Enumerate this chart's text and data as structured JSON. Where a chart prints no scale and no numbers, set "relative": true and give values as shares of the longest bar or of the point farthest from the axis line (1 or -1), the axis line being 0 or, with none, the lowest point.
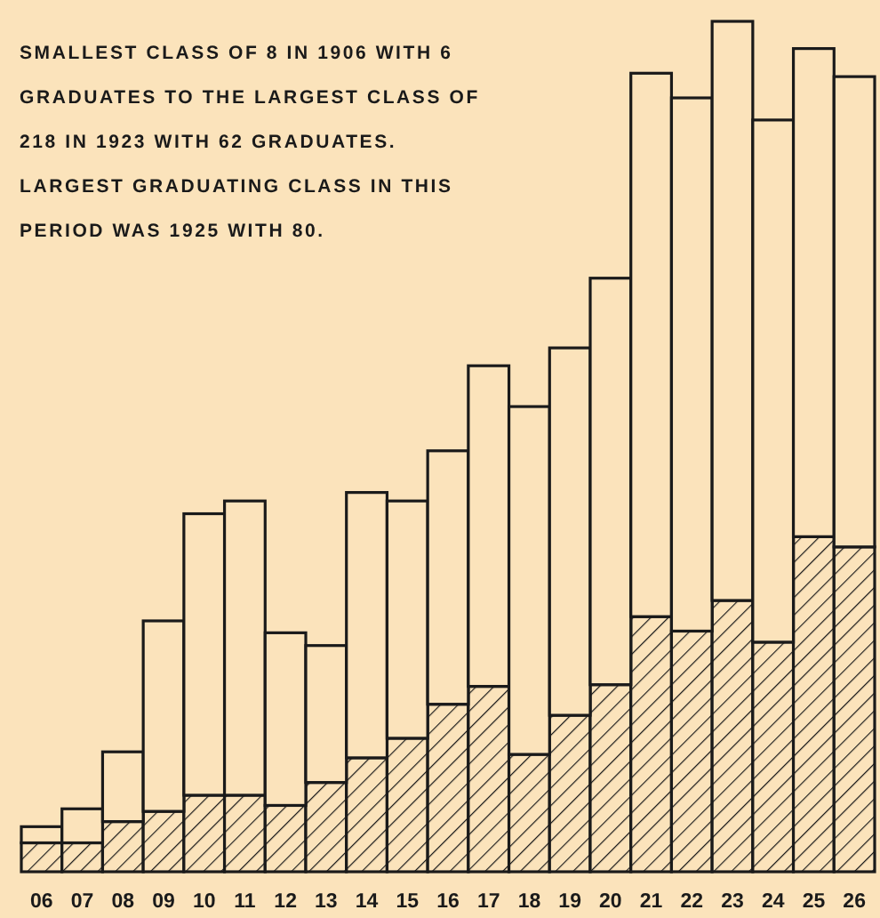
{
  "chart_data": {
    "type": "bar",
    "relative": true,
    "stacked": true,
    "annotations": [
      "SMALLEST CLASS OF 8 IN 1906 WITH 6 GRADUATES TO THE LARGEST CLASS OF 218 IN 1923 WITH 62 GRADUATES. LARGEST GRADUATING CLASS IN THIS PERIOD WAS 1925 WITH 80."
    ],
    "categories": [
      "06",
      "07",
      "08",
      "09",
      "10",
      "11",
      "12",
      "13",
      "14",
      "15",
      "16",
      "17",
      "18",
      "19",
      "20",
      "21",
      "22",
      "23",
      "24",
      "25",
      "26"
    ],
    "series": [
      {
        "color": "#1a1a1a",
        "values": [
          0.034,
          0.034,
          0.059,
          0.071,
          0.09,
          0.09,
          0.078,
          0.105,
          0.134,
          0.157,
          0.197,
          0.218,
          0.138,
          0.184,
          0.22,
          0.3,
          0.283,
          0.319,
          0.27,
          0.394,
          0.382
        ]
      },
      {
        "color": "#fbe3bb",
        "values": [
          0.019,
          0.04,
          0.082,
          0.224,
          0.331,
          0.346,
          0.203,
          0.161,
          0.312,
          0.279,
          0.298,
          0.377,
          0.409,
          0.432,
          0.478,
          0.639,
          0.627,
          0.681,
          0.614,
          0.574,
          0.553
        ]
      }
    ]
  }
}
